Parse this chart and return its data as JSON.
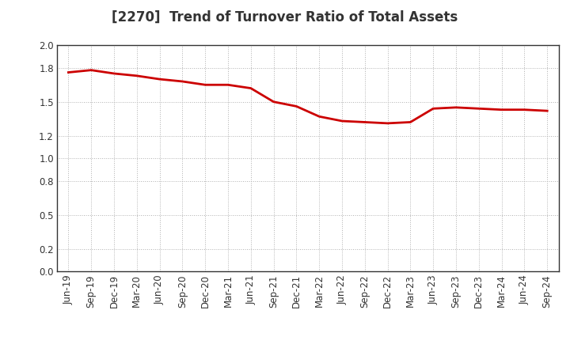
{
  "title": "[2270]  Trend of Turnover Ratio of Total Assets",
  "x_labels": [
    "Jun-19",
    "Sep-19",
    "Dec-19",
    "Mar-20",
    "Jun-20",
    "Sep-20",
    "Dec-20",
    "Mar-21",
    "Jun-21",
    "Sep-21",
    "Dec-21",
    "Mar-22",
    "Jun-22",
    "Sep-22",
    "Dec-22",
    "Mar-23",
    "Jun-23",
    "Sep-23",
    "Dec-23",
    "Mar-24",
    "Jun-24",
    "Sep-24"
  ],
  "y_values": [
    1.76,
    1.78,
    1.75,
    1.73,
    1.7,
    1.68,
    1.65,
    1.65,
    1.62,
    1.5,
    1.46,
    1.37,
    1.33,
    1.32,
    1.31,
    1.32,
    1.44,
    1.45,
    1.44,
    1.43,
    1.43,
    1.42
  ],
  "line_color": "#cc0000",
  "line_width": 2.0,
  "ylim": [
    0.0,
    2.0
  ],
  "yticks": [
    0.0,
    0.2,
    0.5,
    0.8,
    1.0,
    1.2,
    1.5,
    1.8,
    2.0
  ],
  "ytick_labels": [
    "0.0",
    "0.2",
    "0.5",
    "0.8",
    "1.0",
    "1.2",
    "1.5",
    "1.8",
    "2.0"
  ],
  "grid_color": "#b0b0b0",
  "background_color": "#ffffff",
  "title_fontsize": 12,
  "tick_fontsize": 8.5,
  "title_color": "#333333"
}
